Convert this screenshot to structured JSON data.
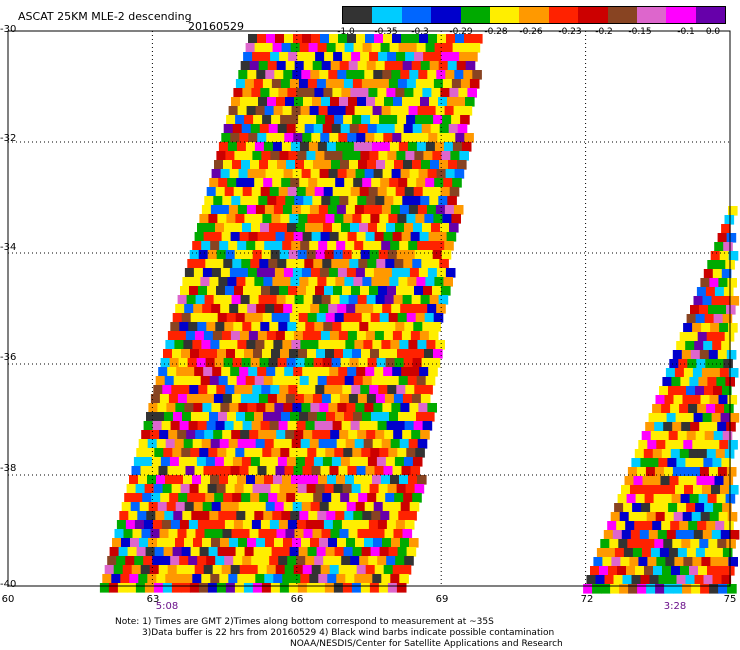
{
  "header": {
    "title": "ASCAT 25KM MLE-2 descending",
    "date": "20160529"
  },
  "colorbar": {
    "colors": [
      "#333333",
      "#00ccff",
      "#0066ff",
      "#0000cc",
      "#00aa00",
      "#ffee00",
      "#ff9900",
      "#ff2200",
      "#cc0000",
      "#884422",
      "#dd66cc",
      "#ff00ff",
      "#6600aa"
    ],
    "ticks": [
      "-1.0",
      "-0.35",
      "-0.3",
      "-0.29",
      "-0.28",
      "-0.26",
      "-0.23",
      "-0.2",
      "-0.15",
      "-0.1",
      "0.0"
    ]
  },
  "axes": {
    "lat_labels": [
      "-30",
      "-32",
      "-34",
      "-36",
      "-38",
      "-40"
    ],
    "lon_labels": [
      "60",
      "63",
      "66",
      "69",
      "72",
      "75"
    ],
    "lat_range": [
      -40,
      -30
    ],
    "lon_range": [
      60,
      75
    ]
  },
  "times": [
    "5:08",
    "3:28"
  ],
  "notes": {
    "line1": "Note: 1) Times are GMT 2)Times along bottom correspond to measurement at ~35S",
    "line2": "3)Data buffer is 22 hrs from 20160529 4) Black wind barbs indicate possible contamination",
    "line3": "NOAA/NESDIS/Center for Satellite Applications and Research"
  },
  "style": {
    "palette_weights": [
      5,
      6,
      5,
      5,
      10,
      22,
      12,
      16,
      6,
      4,
      3,
      4,
      2
    ]
  }
}
